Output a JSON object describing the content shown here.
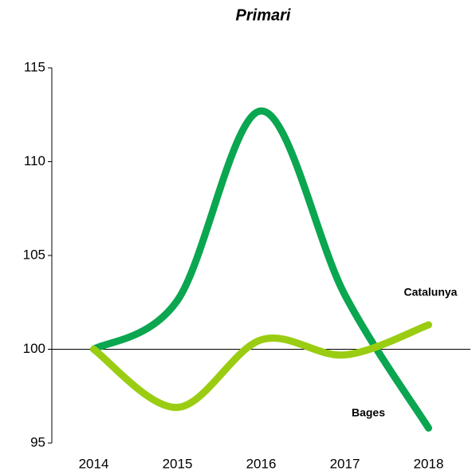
{
  "chart_data": {
    "type": "line",
    "title": "Primari",
    "categories": [
      "2014",
      "2015",
      "2016",
      "2017",
      "2018"
    ],
    "series": [
      {
        "name": "Bages",
        "color": "#0aa650",
        "values": [
          100,
          102.6,
          112.7,
          102.9,
          95.8
        ]
      },
      {
        "name": "Catalunya",
        "color": "#9acd12",
        "values": [
          100,
          96.9,
          100.5,
          99.7,
          101.3
        ]
      }
    ],
    "ylim": [
      95,
      115
    ],
    "yticks": [
      95,
      100,
      105,
      110,
      115
    ],
    "smooth": true
  }
}
